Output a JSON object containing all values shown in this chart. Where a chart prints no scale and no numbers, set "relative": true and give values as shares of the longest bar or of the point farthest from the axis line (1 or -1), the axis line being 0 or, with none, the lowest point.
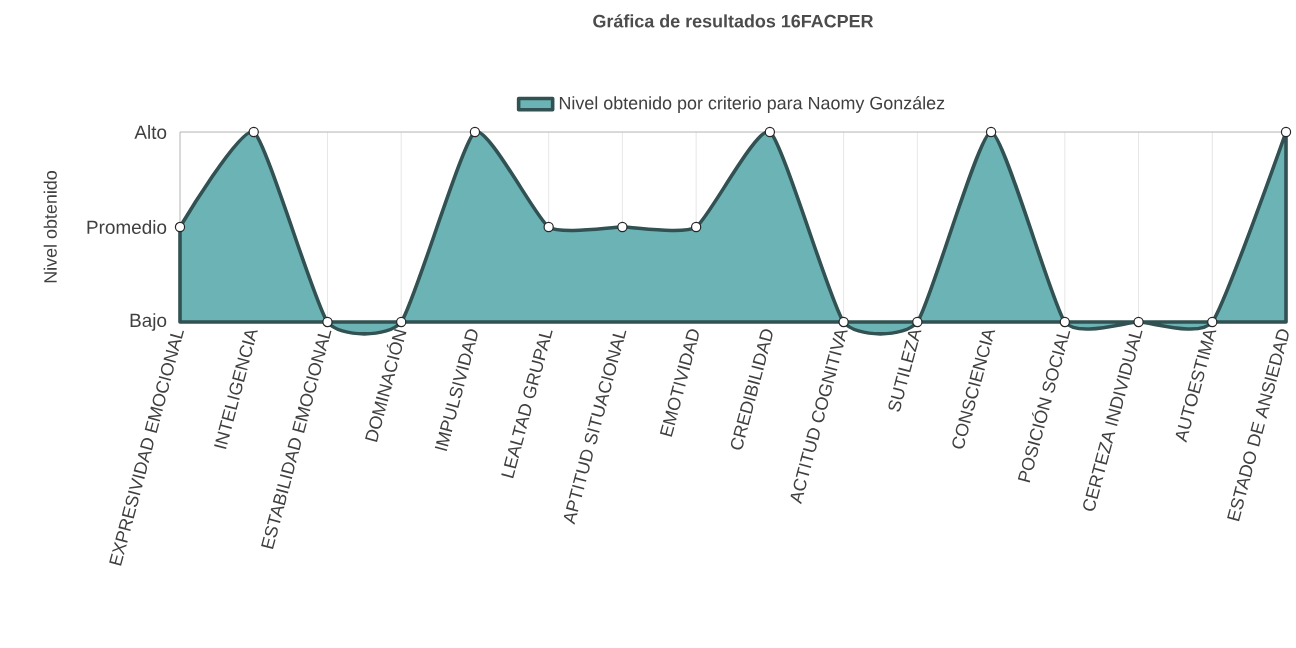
{
  "chart_data": {
    "type": "area",
    "title": "Gráfica de resultados 16FACPER",
    "ylabel": "Nivel obtenido",
    "categories": [
      "EXPRESIVIDAD EMOCIONAL",
      "INTELIGENCIA",
      "ESTABILIDAD EMOCIONAL",
      "DOMINACIÓN",
      "IMPULSIVIDAD",
      "LEALTAD GRUPAL",
      "APTITUD SITUACIONAL",
      "EMOTIVIDAD",
      "CREDIBILIDAD",
      "ACTITUD COGNITIVA",
      "SUTILEZA",
      "CONSCIENCIA",
      "POSICIÓN SOCIAL",
      "CERTEZA INDIVIDUAL",
      "AUTOESTIMA",
      "ESTADO DE ANSIEDAD"
    ],
    "series": [
      {
        "name": "Nivel obtenido por criterio para Naomy González",
        "color": "#6cb3b6",
        "values": [
          0.5,
          1,
          0,
          0,
          1,
          0.5,
          0.5,
          0.5,
          1,
          0,
          0,
          1,
          0,
          0,
          0,
          1
        ]
      }
    ],
    "relative": true,
    "annotations": [
      "Alto",
      "Promedio",
      "Bajo"
    ],
    "grid": true,
    "legend": "top",
    "marker": "circle",
    "line_style": "solid"
  }
}
